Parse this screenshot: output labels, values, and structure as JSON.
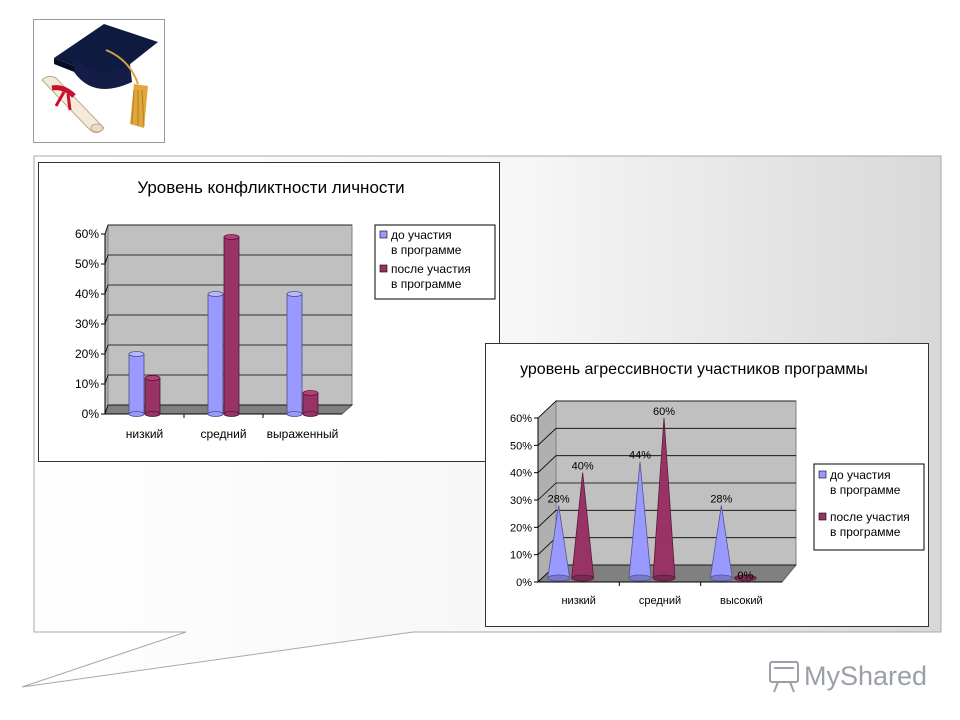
{
  "chart_data": [
    {
      "type": "bar",
      "title": "Уровень конфликтности личности",
      "categories": [
        "низкий",
        "средний",
        "выраженный"
      ],
      "series": [
        {
          "name": "до участия в программе",
          "values": [
            20,
            40,
            40
          ],
          "color": "#9999ff"
        },
        {
          "name": "после участия в программе",
          "values": [
            12,
            59,
            7
          ],
          "color": "#993366"
        }
      ],
      "yticks": [
        "0%",
        "10%",
        "20%",
        "30%",
        "40%",
        "50%",
        "60%"
      ],
      "ylim": [
        0,
        60
      ],
      "legend_position": "right",
      "grid": true,
      "three_d": true
    },
    {
      "type": "bar",
      "shape": "cone",
      "title": "уровень агрессивности участников программы",
      "categories": [
        "низкий",
        "средний",
        "высокий"
      ],
      "series": [
        {
          "name": "до участия в программе",
          "values": [
            28,
            44,
            28
          ],
          "labels": [
            "28%",
            "44%",
            "28%"
          ],
          "color": "#9999ff"
        },
        {
          "name": "после участия в программе",
          "values": [
            40,
            60,
            0
          ],
          "labels": [
            "40%",
            "60%",
            "0%"
          ],
          "color": "#993366"
        }
      ],
      "yticks": [
        "0%",
        "10%",
        "20%",
        "30%",
        "40%",
        "50%",
        "60%"
      ],
      "ylim": [
        0,
        60
      ],
      "legend_position": "right",
      "grid": true,
      "three_d": true
    }
  ],
  "logo": {
    "text": "MyShared"
  }
}
